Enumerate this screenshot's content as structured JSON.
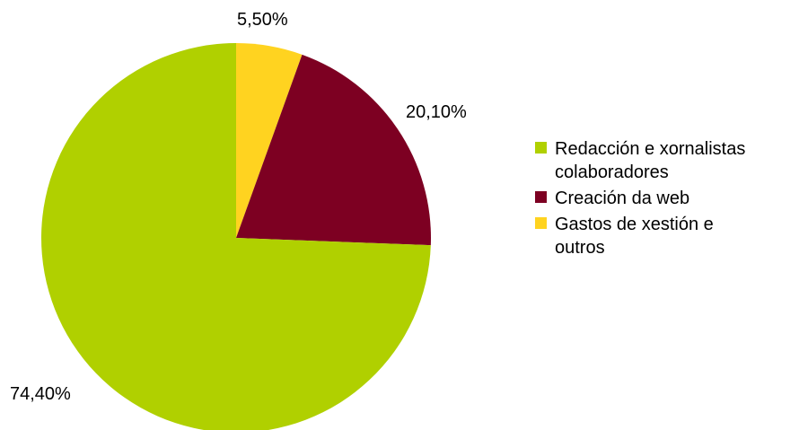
{
  "chart_data": {
    "type": "pie",
    "title": "",
    "categories": [
      "Redacción e xornalistas\ncolaboradores",
      "Creación da web",
      "Gastos de xestión e\noutros"
    ],
    "values": [
      74.4,
      20.1,
      5.5
    ],
    "value_labels": [
      "74,40%",
      "20,10%",
      "5,50%"
    ],
    "colors": [
      "#b0d000",
      "#7d0022",
      "#ffd320"
    ],
    "start_angle_deg": 0,
    "direction": "clockwise",
    "draw_order": [
      2,
      1,
      0
    ],
    "legend_position": "right"
  }
}
